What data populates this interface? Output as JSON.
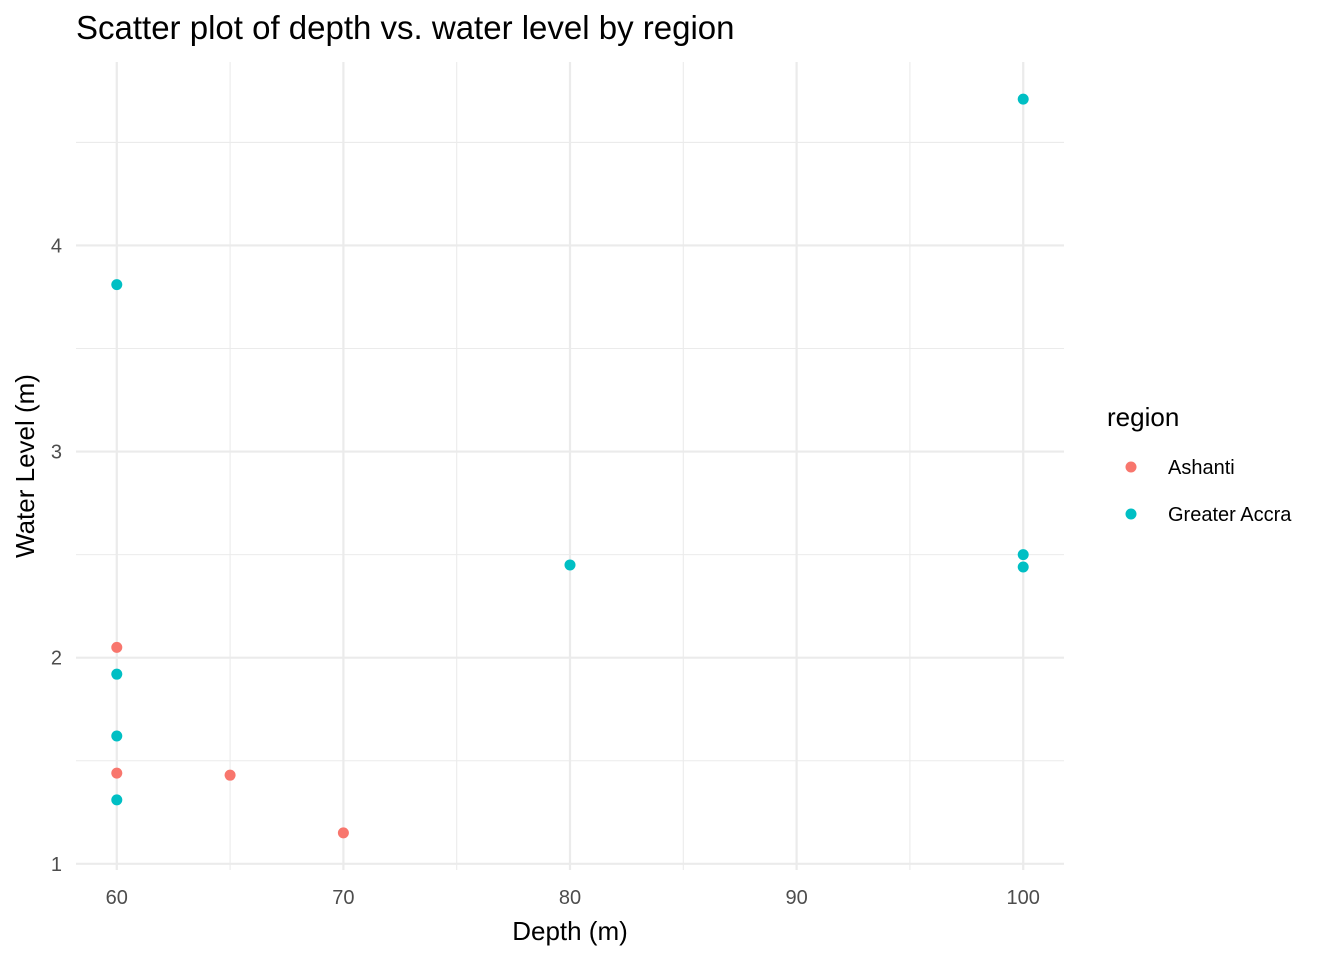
{
  "chart_data": {
    "type": "scatter",
    "title": "Scatter plot of depth vs. water level by region",
    "xlabel": "Depth (m)",
    "ylabel": "Water Level (m)",
    "xlim": [
      58.2,
      101.8
    ],
    "ylim": [
      0.97,
      4.89
    ],
    "x_ticks": [
      60,
      70,
      80,
      90,
      100
    ],
    "y_ticks": [
      1,
      2,
      3,
      4
    ],
    "x_tick_labels": [
      "60",
      "70",
      "80",
      "90",
      "100"
    ],
    "y_tick_labels": [
      "1",
      "2",
      "3",
      "4"
    ],
    "grid": true,
    "legend": {
      "title": "region",
      "position": "right"
    },
    "series": [
      {
        "name": "Ashanti",
        "color": "#F8766D",
        "points": [
          {
            "x": 60,
            "y": 2.05
          },
          {
            "x": 60,
            "y": 1.44
          },
          {
            "x": 65,
            "y": 1.43
          },
          {
            "x": 70,
            "y": 1.15
          }
        ]
      },
      {
        "name": "Greater Accra",
        "color": "#00BFC4",
        "points": [
          {
            "x": 60,
            "y": 3.81
          },
          {
            "x": 60,
            "y": 1.92
          },
          {
            "x": 60,
            "y": 1.62
          },
          {
            "x": 60,
            "y": 1.31
          },
          {
            "x": 80,
            "y": 2.45
          },
          {
            "x": 100,
            "y": 4.71
          },
          {
            "x": 100,
            "y": 2.5
          },
          {
            "x": 100,
            "y": 2.44
          }
        ]
      }
    ]
  }
}
